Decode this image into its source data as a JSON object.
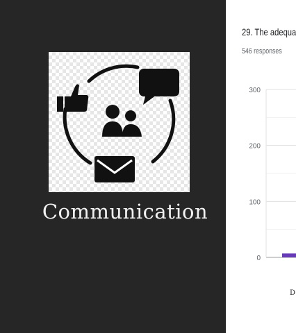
{
  "slide": {
    "caption": "Communication",
    "icon": "communication-cycle-icon"
  },
  "form_summary": {
    "question": "29. The adequa",
    "responses": "546 responses"
  },
  "chart_data": {
    "type": "bar",
    "yticks": [
      "300",
      "200",
      "100",
      "0"
    ],
    "ylim": [
      0,
      300
    ],
    "categories": [
      "D"
    ],
    "values": [
      7
    ],
    "bar_color": "#673ab7"
  },
  "colors": {
    "slide_bg": "#262626",
    "caption": "#f2f2f2",
    "bar": "#673ab7"
  }
}
